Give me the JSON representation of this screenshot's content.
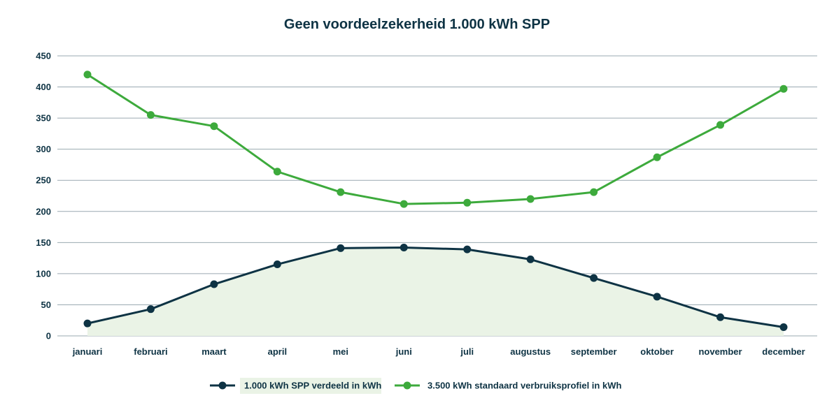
{
  "chart_data": {
    "type": "line",
    "title": "Geen voordeelzekerheid 1.000 kWh SPP",
    "xlabel": "",
    "ylabel": "",
    "categories": [
      "januari",
      "februari",
      "maart",
      "april",
      "mei",
      "juni",
      "juli",
      "augustus",
      "september",
      "oktober",
      "november",
      "december"
    ],
    "ylim": [
      0,
      450
    ],
    "yticks": [
      0,
      50,
      100,
      150,
      200,
      250,
      300,
      350,
      400,
      450
    ],
    "grid": true,
    "legend_position": "bottom",
    "series": [
      {
        "name": "1.000 kWh SPP verdeeld in kWh",
        "color": "#0e3344",
        "area_fill": "#eaf3e6",
        "values": [
          20,
          43,
          83,
          115,
          141,
          142,
          139,
          123,
          93,
          63,
          30,
          14
        ]
      },
      {
        "name": "3.500 kWh standaard verbruiksprofiel in kWh",
        "color": "#3daa3c",
        "values": [
          420,
          355,
          337,
          264,
          231,
          212,
          214,
          220,
          231,
          287,
          339,
          397
        ]
      }
    ]
  }
}
